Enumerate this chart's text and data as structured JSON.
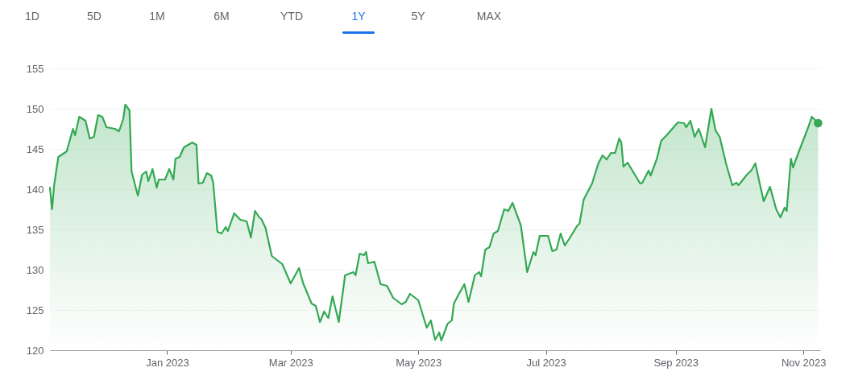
{
  "chart_data": {
    "type": "area",
    "annotations": [
      "1D",
      "5D",
      "1M",
      "6M",
      "YTD",
      "1Y",
      "5Y",
      "MAX"
    ],
    "x": [
      "2022-11-06",
      "2022-11-07",
      "2022-11-08",
      "2022-11-10",
      "2022-11-14",
      "2022-11-17",
      "2022-11-18",
      "2022-11-20",
      "2022-11-23",
      "2022-11-25",
      "2022-11-27",
      "2022-11-29",
      "2022-12-01",
      "2022-12-03",
      "2022-12-07",
      "2022-12-09",
      "2022-12-11",
      "2022-12-12",
      "2022-12-14",
      "2022-12-15",
      "2022-12-18",
      "2022-12-20",
      "2022-12-22",
      "2022-12-23",
      "2022-12-25",
      "2022-12-27",
      "2022-12-28",
      "2022-12-31",
      "2023-01-02",
      "2023-01-04",
      "2023-01-05",
      "2023-01-07",
      "2023-01-09",
      "2023-01-13",
      "2023-01-15",
      "2023-01-16",
      "2023-01-18",
      "2023-01-20",
      "2023-01-22",
      "2023-01-23",
      "2023-01-25",
      "2023-01-27",
      "2023-01-29",
      "2023-01-30",
      "2023-02-02",
      "2023-02-05",
      "2023-02-08",
      "2023-02-10",
      "2023-02-12",
      "2023-02-14",
      "2023-02-15",
      "2023-02-17",
      "2023-02-20",
      "2023-02-25",
      "2023-03-01",
      "2023-03-05",
      "2023-03-07",
      "2023-03-11",
      "2023-03-13",
      "2023-03-15",
      "2023-03-17",
      "2023-03-19",
      "2023-03-21",
      "2023-03-24",
      "2023-03-27",
      "2023-03-31",
      "2023-04-01",
      "2023-04-03",
      "2023-04-05",
      "2023-04-06",
      "2023-04-07",
      "2023-04-10",
      "2023-04-13",
      "2023-04-16",
      "2023-04-19",
      "2023-04-23",
      "2023-04-25",
      "2023-04-27",
      "2023-05-01",
      "2023-05-05",
      "2023-05-07",
      "2023-05-09",
      "2023-05-11",
      "2023-05-12",
      "2023-05-15",
      "2023-05-17",
      "2023-05-18",
      "2023-05-20",
      "2023-05-23",
      "2023-05-25",
      "2023-05-28",
      "2023-05-30",
      "2023-05-31",
      "2023-06-02",
      "2023-06-04",
      "2023-06-06",
      "2023-06-08",
      "2023-06-11",
      "2023-06-13",
      "2023-06-15",
      "2023-06-19",
      "2023-06-22",
      "2023-06-25",
      "2023-06-26",
      "2023-06-28",
      "2023-07-02",
      "2023-07-04",
      "2023-07-06",
      "2023-07-08",
      "2023-07-10",
      "2023-07-12",
      "2023-07-16",
      "2023-07-17",
      "2023-07-19",
      "2023-07-23",
      "2023-07-26",
      "2023-07-28",
      "2023-07-30",
      "2023-08-01",
      "2023-08-03",
      "2023-08-05",
      "2023-08-06",
      "2023-08-07",
      "2023-08-09",
      "2023-08-12",
      "2023-08-15",
      "2023-08-16",
      "2023-08-19",
      "2023-08-20",
      "2023-08-23",
      "2023-08-25",
      "2023-08-28",
      "2023-08-31",
      "2023-09-02",
      "2023-09-05",
      "2023-09-06",
      "2023-09-08",
      "2023-09-10",
      "2023-09-12",
      "2023-09-15",
      "2023-09-18",
      "2023-09-20",
      "2023-09-22",
      "2023-09-25",
      "2023-09-28",
      "2023-09-30",
      "2023-10-01",
      "2023-10-05",
      "2023-10-07",
      "2023-10-09",
      "2023-10-13",
      "2023-10-16",
      "2023-10-19",
      "2023-10-21",
      "2023-10-23",
      "2023-10-24",
      "2023-10-26",
      "2023-10-27",
      "2023-10-30",
      "2023-11-03",
      "2023-11-05",
      "2023-11-08"
    ],
    "series": [
      {
        "color": "#34a853",
        "values": [
          140.2,
          137.5,
          140.5,
          144,
          144.7,
          147.5,
          146.7,
          149,
          148.5,
          146.3,
          146.5,
          149.2,
          149,
          147.7,
          147.5,
          147.2,
          148.7,
          150.5,
          149.8,
          142.2,
          139.2,
          141.8,
          142.2,
          141,
          142.5,
          140.2,
          141.2,
          141.2,
          142.5,
          141.2,
          143.8,
          144,
          145.2,
          145.8,
          145.5,
          140.7,
          140.8,
          142,
          141.7,
          140.8,
          134.7,
          134.5,
          135.3,
          134.8,
          137,
          136.2,
          136,
          134,
          137.3,
          136.5,
          136.3,
          135.2,
          131.7,
          130.7,
          128.3,
          130.2,
          128.3,
          125.8,
          125.5,
          123.5,
          124.8,
          124,
          126.7,
          123.5,
          129.3,
          129.7,
          129.3,
          132,
          131.8,
          132.2,
          130.8,
          131,
          128.2,
          128,
          126.5,
          125.7,
          126,
          127,
          126.2,
          122.8,
          123.7,
          121.3,
          122.2,
          121.2,
          123.3,
          123.7,
          125.8,
          126.8,
          128.2,
          126,
          129.3,
          129.7,
          129.2,
          132.5,
          132.8,
          134.5,
          134.8,
          137.5,
          137.3,
          138.3,
          135.5,
          129.7,
          132.2,
          131.8,
          134.2,
          134.2,
          132.3,
          132.5,
          134.5,
          133,
          133.8,
          135.5,
          135.7,
          138.7,
          140.7,
          143.2,
          144.2,
          143.7,
          144.5,
          144.5,
          146.3,
          145.8,
          142.8,
          143.3,
          142,
          140.7,
          140.8,
          142.3,
          141.7,
          143.8,
          146,
          146.8,
          147.7,
          148.3,
          148.2,
          147.7,
          148.5,
          146.5,
          147.5,
          145.2,
          150,
          147.3,
          146.5,
          143.2,
          140.5,
          140.8,
          140.5,
          141.8,
          142.3,
          143.2,
          138.5,
          140.3,
          137.5,
          136.5,
          137.7,
          137.3,
          143.8,
          142.7,
          144.8,
          147.5,
          149,
          148.2
        ]
      },
      {
        "type": "scatter",
        "color": "#34a853",
        "x": [
          "2023-11-08"
        ],
        "values": [
          148.2
        ]
      }
    ],
    "xlim": [
      "2022-11-06",
      "2023-11-09"
    ],
    "xticks": [
      {
        "value": "2023-01-01",
        "label": "Jan 2023"
      },
      {
        "value": "2023-03-01",
        "label": "Mar 2023"
      },
      {
        "value": "2023-05-01",
        "label": "May 2023"
      },
      {
        "value": "2023-07-01",
        "label": "Jul 2023"
      },
      {
        "value": "2023-09-01",
        "label": "Sep 2023"
      },
      {
        "value": "2023-11-01",
        "label": "Nov 2023"
      }
    ],
    "ylim": [
      120,
      155
    ],
    "yticks": [
      120,
      125,
      130,
      135,
      140,
      145,
      150,
      155
    ],
    "grid": "y"
  }
}
